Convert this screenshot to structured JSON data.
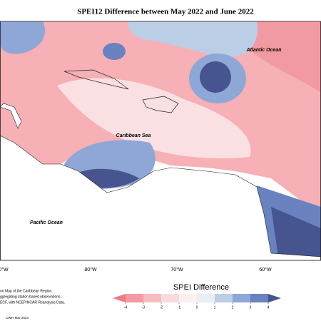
{
  "title": "SPEI12 Difference between May 2022 and June 2022",
  "places": [
    "Atlantic Ocean",
    "Caribbean Sea",
    "Pacific Ocean"
  ],
  "longitudes": [
    "0°W",
    "80°W",
    "70°W",
    "60°W"
  ],
  "legend": {
    "title": "SPEI Difference",
    "ticks": [
      -4,
      -3,
      -2,
      -1,
      0,
      1,
      2,
      3,
      4
    ],
    "colors": [
      "#f07a85",
      "#f39aa2",
      "#f7bcc1",
      "#fadadd",
      "#fdf0f1",
      "#e8eef6",
      "#bccde6",
      "#8fa7d6",
      "#6a82c0",
      "#46548f"
    ]
  },
  "notes": [
    "on Map of the Caribbean Region.",
    "ggregating station based observations,",
    "ECF, with NCEP/NCAR Reanalysis Data."
  ],
  "credit": "CIMH Mar-2023"
}
